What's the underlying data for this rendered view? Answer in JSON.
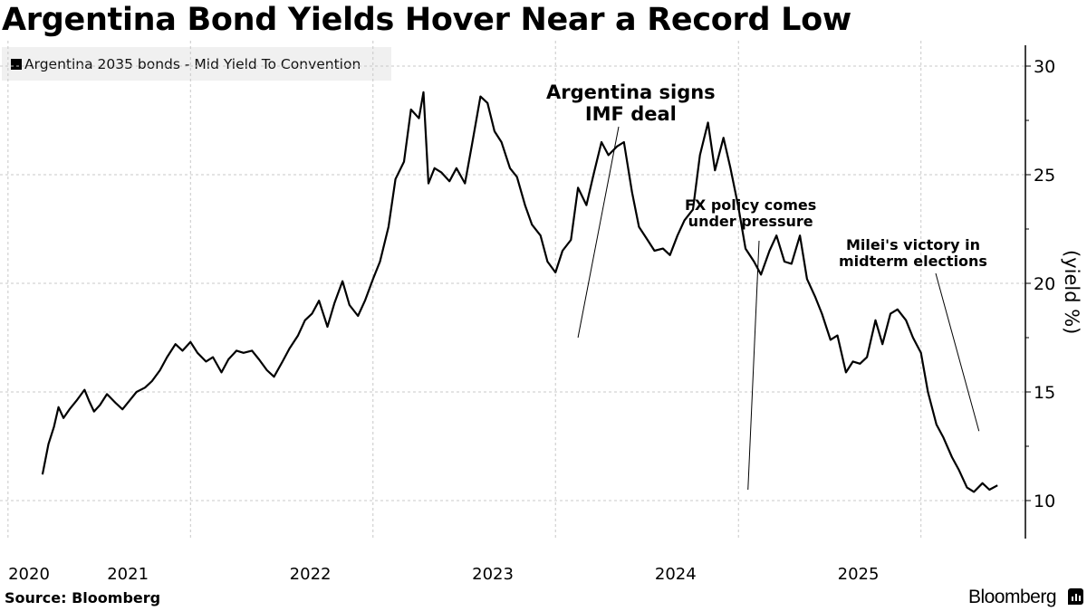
{
  "title": "Argentina Bond Yields Hover Near a Record Low",
  "source": "Source: Bloomberg",
  "brand": "Bloomberg",
  "brand_icon": "bloomberg-chart-icon",
  "colors": {
    "line": "#000000",
    "grid": "#c8c8c8",
    "legend_bg": "#f0f0f0"
  },
  "chart_data": {
    "type": "line",
    "title": "Argentina Bond Yields Hover Near a Record Low",
    "xlabel": "",
    "ylabel": "(yield %)",
    "ylim": [
      8.5,
      31
    ],
    "xlim": [
      "2020-06-15",
      "2026-01-15"
    ],
    "y_ticks": [
      10,
      15,
      20,
      25,
      30
    ],
    "x_tick_labels": [
      "2020",
      "2021",
      "2022",
      "2023",
      "2024",
      "2025"
    ],
    "grid": true,
    "legend_position": "top-left",
    "axis_position": "right",
    "series": [
      {
        "name": "Argentina 2035 bonds - Mid Yield To Convention",
        "points": [
          [
            "2020-09-08",
            11.2
          ],
          [
            "2020-09-20",
            12.6
          ],
          [
            "2020-10-01",
            13.4
          ],
          [
            "2020-10-10",
            14.3
          ],
          [
            "2020-10-20",
            13.8
          ],
          [
            "2020-11-01",
            14.2
          ],
          [
            "2020-11-15",
            14.6
          ],
          [
            "2020-12-01",
            15.1
          ],
          [
            "2020-12-10",
            14.6
          ],
          [
            "2020-12-20",
            14.1
          ],
          [
            "2021-01-01",
            14.4
          ],
          [
            "2021-01-15",
            14.9
          ],
          [
            "2021-02-01",
            14.5
          ],
          [
            "2021-02-15",
            14.2
          ],
          [
            "2021-03-01",
            14.6
          ],
          [
            "2021-03-15",
            15.0
          ],
          [
            "2021-04-01",
            15.2
          ],
          [
            "2021-04-15",
            15.5
          ],
          [
            "2021-05-01",
            16.0
          ],
          [
            "2021-05-15",
            16.6
          ],
          [
            "2021-06-01",
            17.2
          ],
          [
            "2021-06-15",
            16.9
          ],
          [
            "2021-07-01",
            17.3
          ],
          [
            "2021-07-15",
            16.8
          ],
          [
            "2021-08-01",
            16.4
          ],
          [
            "2021-08-15",
            16.6
          ],
          [
            "2021-09-01",
            15.9
          ],
          [
            "2021-09-15",
            16.5
          ],
          [
            "2021-10-01",
            16.9
          ],
          [
            "2021-10-15",
            16.8
          ],
          [
            "2021-11-01",
            16.9
          ],
          [
            "2021-11-15",
            16.5
          ],
          [
            "2021-12-01",
            16.0
          ],
          [
            "2021-12-15",
            15.7
          ],
          [
            "2022-01-01",
            16.4
          ],
          [
            "2022-01-15",
            17.0
          ],
          [
            "2022-02-01",
            17.6
          ],
          [
            "2022-02-15",
            18.3
          ],
          [
            "2022-03-01",
            18.6
          ],
          [
            "2022-03-15",
            19.2
          ],
          [
            "2022-04-01",
            18.0
          ],
          [
            "2022-04-15",
            19.1
          ],
          [
            "2022-05-01",
            20.1
          ],
          [
            "2022-05-15",
            19.0
          ],
          [
            "2022-06-01",
            18.5
          ],
          [
            "2022-06-15",
            19.2
          ],
          [
            "2022-07-01",
            20.2
          ],
          [
            "2022-07-15",
            21.0
          ],
          [
            "2022-08-01",
            22.6
          ],
          [
            "2022-08-15",
            24.8
          ],
          [
            "2022-09-01",
            25.6
          ],
          [
            "2022-09-15",
            28.0
          ],
          [
            "2022-10-01",
            27.6
          ],
          [
            "2022-10-10",
            28.8
          ],
          [
            "2022-10-20",
            24.6
          ],
          [
            "2022-11-01",
            25.3
          ],
          [
            "2022-11-15",
            25.1
          ],
          [
            "2022-12-01",
            24.7
          ],
          [
            "2022-12-15",
            25.3
          ],
          [
            "2023-01-01",
            24.6
          ],
          [
            "2023-01-15",
            26.4
          ],
          [
            "2023-02-01",
            28.6
          ],
          [
            "2023-02-15",
            28.3
          ],
          [
            "2023-03-01",
            27.0
          ],
          [
            "2023-03-15",
            26.5
          ],
          [
            "2023-04-01",
            25.3
          ],
          [
            "2023-04-15",
            24.9
          ],
          [
            "2023-05-01",
            23.6
          ],
          [
            "2023-05-15",
            22.7
          ],
          [
            "2023-06-01",
            22.2
          ],
          [
            "2023-06-15",
            21.0
          ],
          [
            "2023-07-01",
            20.5
          ],
          [
            "2023-07-15",
            21.5
          ],
          [
            "2023-08-01",
            22.0
          ],
          [
            "2023-08-15",
            24.4
          ],
          [
            "2023-09-01",
            23.6
          ],
          [
            "2023-09-15",
            25.0
          ],
          [
            "2023-10-01",
            26.5
          ],
          [
            "2023-10-15",
            25.9
          ],
          [
            "2023-11-01",
            26.3
          ],
          [
            "2023-11-15",
            26.5
          ],
          [
            "2023-12-01",
            24.2
          ],
          [
            "2023-12-15",
            22.6
          ],
          [
            "2024-01-01",
            22.0
          ],
          [
            "2024-01-15",
            21.5
          ],
          [
            "2024-02-01",
            21.6
          ],
          [
            "2024-02-15",
            21.3
          ],
          [
            "2024-03-01",
            22.2
          ],
          [
            "2024-03-15",
            22.9
          ],
          [
            "2024-04-01",
            23.4
          ],
          [
            "2024-04-15",
            25.9
          ],
          [
            "2024-05-01",
            27.4
          ],
          [
            "2024-05-15",
            25.2
          ],
          [
            "2024-06-01",
            26.7
          ],
          [
            "2024-06-15",
            25.3
          ],
          [
            "2024-07-01",
            23.5
          ],
          [
            "2024-07-15",
            21.6
          ],
          [
            "2024-08-01",
            21.0
          ],
          [
            "2024-08-15",
            20.4
          ],
          [
            "2024-09-01",
            21.5
          ],
          [
            "2024-09-15",
            22.2
          ],
          [
            "2024-10-01",
            21.0
          ],
          [
            "2024-10-15",
            20.9
          ],
          [
            "2024-11-01",
            22.2
          ],
          [
            "2024-11-15",
            20.2
          ],
          [
            "2024-12-01",
            19.4
          ],
          [
            "2024-12-15",
            18.6
          ],
          [
            "2025-01-01",
            17.4
          ],
          [
            "2025-01-15",
            17.6
          ],
          [
            "2025-02-01",
            15.9
          ],
          [
            "2025-02-15",
            16.4
          ],
          [
            "2025-03-01",
            16.3
          ],
          [
            "2025-03-15",
            16.6
          ],
          [
            "2025-04-01",
            18.3
          ],
          [
            "2025-04-15",
            17.2
          ],
          [
            "2025-05-01",
            18.6
          ],
          [
            "2025-05-15",
            18.8
          ],
          [
            "2025-06-01",
            18.3
          ],
          [
            "2025-06-15",
            17.5
          ],
          [
            "2025-07-01",
            16.8
          ],
          [
            "2025-07-15",
            15.0
          ],
          [
            "2025-08-01",
            13.5
          ],
          [
            "2025-08-15",
            12.9
          ],
          [
            "2025-09-01",
            12.0
          ],
          [
            "2025-09-15",
            11.4
          ],
          [
            "2025-10-01",
            10.6
          ],
          [
            "2025-10-15",
            10.4
          ],
          [
            "2025-11-01",
            10.8
          ],
          [
            "2025-11-15",
            10.5
          ],
          [
            "2025-12-01",
            10.7
          ]
        ]
      }
    ],
    "annotations": [
      {
        "text": [
          "Argentina signs",
          "IMF deal"
        ],
        "target": [
          "2023-08-15",
          17.5
        ]
      },
      {
        "text": [
          "FX policy comes",
          "under pressure"
        ],
        "target": [
          "2024-07-20",
          10.5
        ]
      },
      {
        "text": [
          "Milei's victory in",
          "midterm elections"
        ],
        "target": [
          "2025-10-25",
          13.2
        ]
      }
    ]
  }
}
